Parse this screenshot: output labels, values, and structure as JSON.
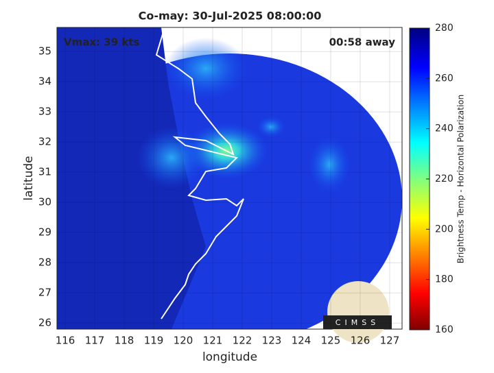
{
  "title": "Co-may: 30-Jul-2025 08:00:00",
  "annotations": {
    "vmax": "Vmax: 39 kts",
    "time_away": "00:58 away"
  },
  "axes": {
    "xlabel": "longitude",
    "ylabel": "latitude",
    "xlim": [
      115.72,
      127.42
    ],
    "ylim": [
      25.8,
      35.8
    ],
    "xticks": [
      116,
      117,
      118,
      119,
      120,
      121,
      122,
      123,
      124,
      125,
      126,
      127
    ],
    "yticks": [
      26,
      27,
      28,
      29,
      30,
      31,
      32,
      33,
      34,
      35
    ]
  },
  "colorbar": {
    "label": "Brightness Temp - Horizontal Polarization",
    "clim": [
      160,
      280
    ],
    "ticks": [
      160,
      180,
      200,
      220,
      240,
      260,
      280
    ]
  },
  "logo": {
    "text": "CIMSS"
  }
}
